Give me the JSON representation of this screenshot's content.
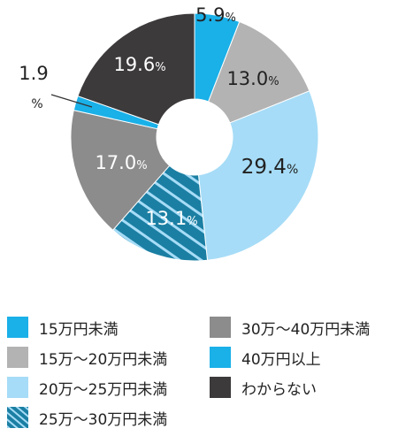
{
  "chart_data": {
    "type": "pie",
    "donut": true,
    "legend_position": "bottom",
    "slices": [
      {
        "label": "40万円以上",
        "value": 5.9,
        "value_text": "5.9",
        "unit": "%",
        "color": "#1ab0e8"
      },
      {
        "label": "15万～20万円未満",
        "value": 13.0,
        "value_text": "13.0",
        "unit": "%",
        "color": "#b3b3b3"
      },
      {
        "label": "20万～25万円未満",
        "value": 29.4,
        "value_text": "29.4",
        "unit": "%",
        "color": "#a6dcf7"
      },
      {
        "label": "25万～30万円未満",
        "value": 13.1,
        "value_text": "13.1",
        "unit": "%",
        "color": "#1b7fa3",
        "pattern": "hatched"
      },
      {
        "label": "30万～40万円未満",
        "value": 17.0,
        "value_text": "17.0",
        "unit": "%",
        "color": "#8c8c8c"
      },
      {
        "label": "15万円未満",
        "value": 1.9,
        "value_text": "1.9",
        "unit": "%",
        "color": "#1ab0e8"
      },
      {
        "label": "わからない",
        "value": 19.6,
        "value_text": "19.6",
        "unit": "%",
        "color": "#3d3a3b"
      }
    ],
    "legend": [
      {
        "label": "15万円未満",
        "color": "#1ab0e8"
      },
      {
        "label": "15万～20万円未満",
        "color": "#b3b3b3"
      },
      {
        "label": "20万～25万円未満",
        "color": "#a6dcf7"
      },
      {
        "label": "25万～30万円未満",
        "color": "#1b7fa3",
        "pattern": "hatched"
      },
      {
        "label": "30万～40万円未満",
        "color": "#8c8c8c"
      },
      {
        "label": "40万円以上",
        "color": "#1ab0e8"
      },
      {
        "label": "わからない",
        "color": "#3d3a3b"
      }
    ]
  }
}
